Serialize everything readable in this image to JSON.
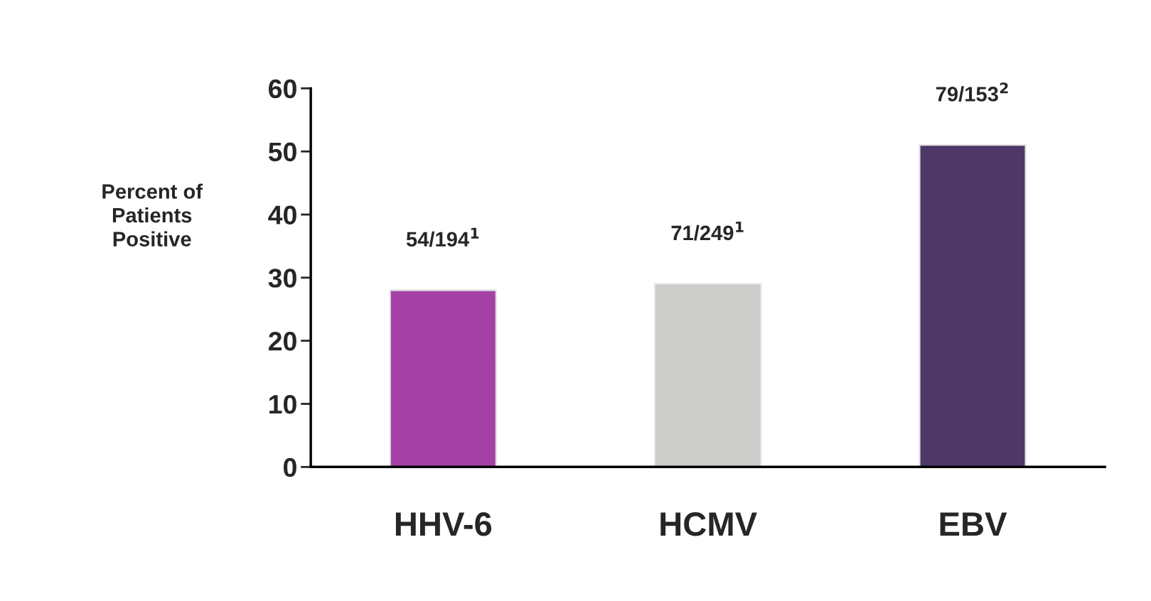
{
  "chart_data": {
    "type": "bar",
    "ylabel": "Percent of\nPatients\nPositive",
    "categories": [
      "HHV-6",
      "HCMV",
      "EBV"
    ],
    "values": [
      28,
      29,
      51
    ],
    "colors": [
      "#a541a6",
      "#cccccb",
      "#4d3868"
    ],
    "value_labels": [
      "54/194$^{1}$",
      "71/249$^{1}$",
      "79/153$^{2}$"
    ],
    "ylim": [
      0,
      60
    ],
    "yticks": [
      0,
      10,
      20,
      30,
      40,
      50,
      60
    ],
    "grid": false,
    "legend": false
  }
}
